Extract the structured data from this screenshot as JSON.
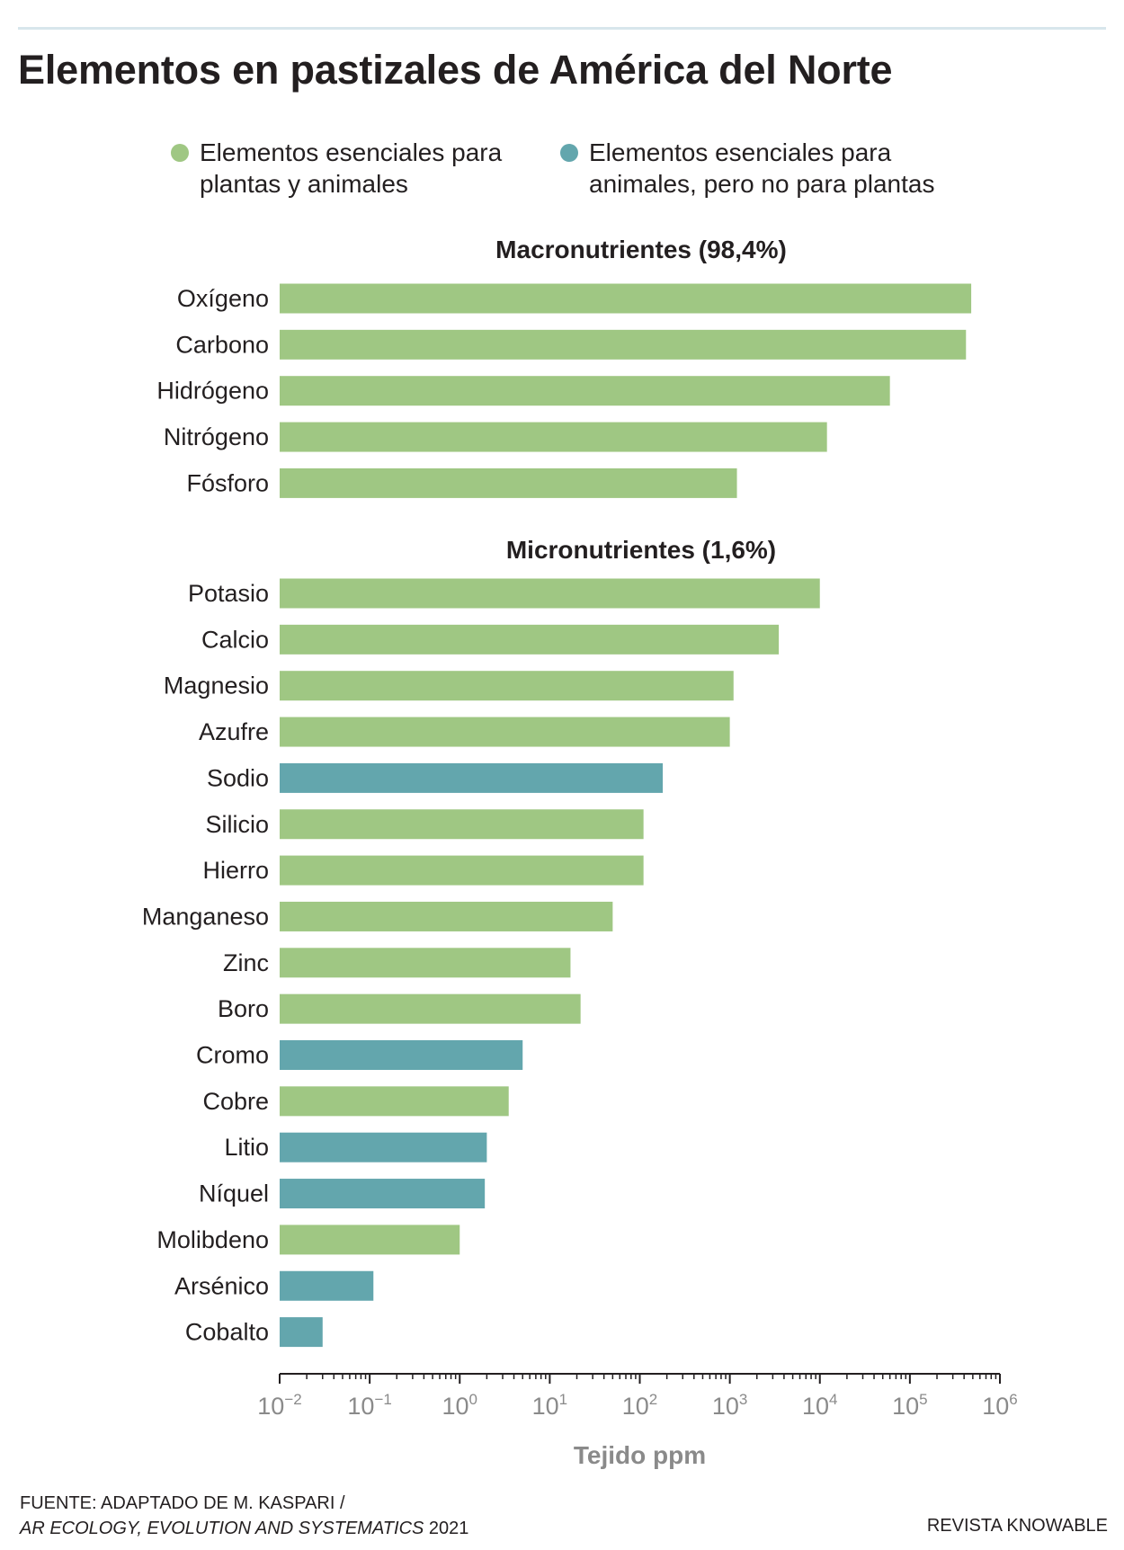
{
  "title": "Elementos en pastizales de América del Norte",
  "legend": [
    {
      "label": "Elementos esenciales para plantas y animales",
      "color": "#9fc783"
    },
    {
      "label": "Elementos esenciales para animales, pero no para plantas",
      "color": "#63a6ad"
    }
  ],
  "chart_data": {
    "type": "bar",
    "orientation": "horizontal",
    "scale": "log",
    "xlabel": "Tejido ppm",
    "xlim": [
      0.01,
      1000000
    ],
    "ticks": [
      {
        "value": 0.01,
        "base": "10",
        "exp": "−2"
      },
      {
        "value": 0.1,
        "base": "10",
        "exp": "−1"
      },
      {
        "value": 1,
        "base": "10",
        "exp": "0"
      },
      {
        "value": 10,
        "base": "10",
        "exp": "1"
      },
      {
        "value": 100,
        "base": "10",
        "exp": "2"
      },
      {
        "value": 1000,
        "base": "10",
        "exp": "3"
      },
      {
        "value": 10000,
        "base": "10",
        "exp": "4"
      },
      {
        "value": 100000,
        "base": "10",
        "exp": "5"
      },
      {
        "value": 1000000,
        "base": "10",
        "exp": "6"
      }
    ],
    "groups": [
      {
        "title": "Macronutrientes (98,4%)",
        "bars": [
          {
            "label": "Oxígeno",
            "value": 480000,
            "type": "plants_animals"
          },
          {
            "label": "Carbono",
            "value": 420000,
            "type": "plants_animals"
          },
          {
            "label": "Hidrógeno",
            "value": 60000,
            "type": "plants_animals"
          },
          {
            "label": "Nitrógeno",
            "value": 12000,
            "type": "plants_animals"
          },
          {
            "label": "Fósforo",
            "value": 1200,
            "type": "plants_animals"
          }
        ]
      },
      {
        "title": "Micronutrientes (1,6%)",
        "bars": [
          {
            "label": "Potasio",
            "value": 10000,
            "type": "plants_animals"
          },
          {
            "label": "Calcio",
            "value": 3500,
            "type": "plants_animals"
          },
          {
            "label": "Magnesio",
            "value": 1100,
            "type": "plants_animals"
          },
          {
            "label": "Azufre",
            "value": 1000,
            "type": "plants_animals"
          },
          {
            "label": "Sodio",
            "value": 180,
            "type": "animals_only"
          },
          {
            "label": "Silicio",
            "value": 110,
            "type": "plants_animals"
          },
          {
            "label": "Hierro",
            "value": 110,
            "type": "plants_animals"
          },
          {
            "label": "Manganeso",
            "value": 50,
            "type": "plants_animals"
          },
          {
            "label": "Zinc",
            "value": 17,
            "type": "plants_animals"
          },
          {
            "label": "Boro",
            "value": 22,
            "type": "plants_animals"
          },
          {
            "label": "Cromo",
            "value": 5,
            "type": "animals_only"
          },
          {
            "label": "Cobre",
            "value": 3.5,
            "type": "plants_animals"
          },
          {
            "label": "Litio",
            "value": 2,
            "type": "animals_only"
          },
          {
            "label": "Níquel",
            "value": 1.9,
            "type": "animals_only"
          },
          {
            "label": "Molibdeno",
            "value": 1,
            "type": "plants_animals"
          },
          {
            "label": "Arsénico",
            "value": 0.11,
            "type": "animals_only"
          },
          {
            "label": "Cobalto",
            "value": 0.03,
            "type": "animals_only"
          }
        ]
      }
    ]
  },
  "colors": {
    "plants_animals": "#9fc783",
    "animals_only": "#63a6ad",
    "axis": "#231f20"
  },
  "footer": {
    "source_line1": "FUENTE: ADAPTADO DE M. KASPARI /",
    "source_line2_italic": "AR ECOLOGY, EVOLUTION AND SYSTEMATICS",
    "source_line2_year": " 2021",
    "credit": "REVISTA KNOWABLE"
  }
}
